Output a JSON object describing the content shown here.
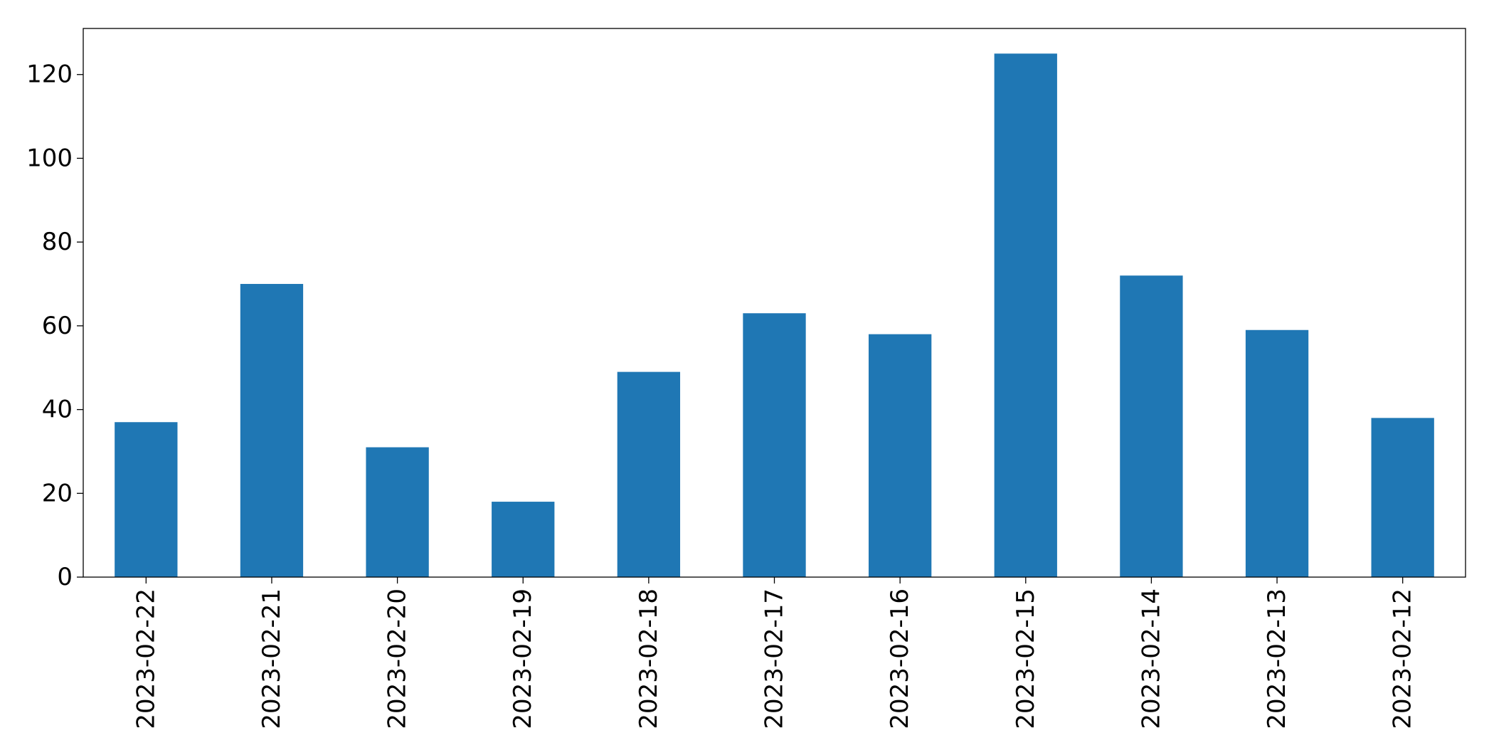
{
  "chart_data": {
    "type": "bar",
    "categories": [
      "2023-02-22",
      "2023-02-21",
      "2023-02-20",
      "2023-02-19",
      "2023-02-18",
      "2023-02-17",
      "2023-02-16",
      "2023-02-15",
      "2023-02-14",
      "2023-02-13",
      "2023-02-12"
    ],
    "values": [
      37,
      70,
      31,
      18,
      49,
      63,
      58,
      125,
      72,
      59,
      38
    ],
    "title": "",
    "xlabel": "",
    "ylabel": "",
    "ylim": [
      0,
      131
    ],
    "yticks": [
      0,
      20,
      40,
      60,
      80,
      100,
      120
    ],
    "grid": false,
    "legend": "none",
    "bar_color": "#1f77b4",
    "x_tick_rotation": "vertical"
  }
}
